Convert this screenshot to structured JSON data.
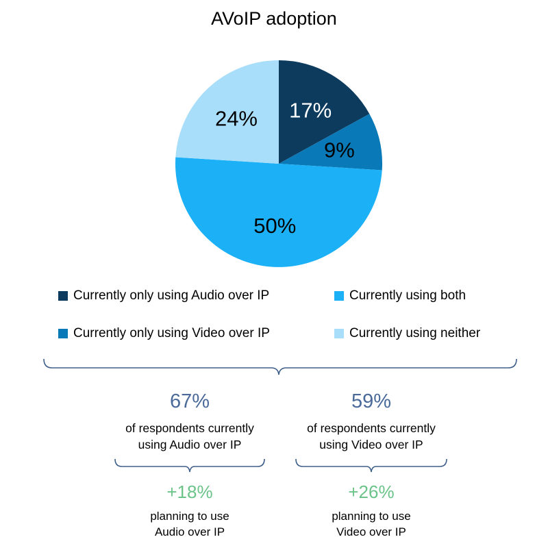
{
  "chart_data": {
    "type": "pie",
    "title": "AVoIP adoption",
    "slices": [
      {
        "label": "Currently only using Audio over IP",
        "value": 17,
        "display": "17%",
        "color": "#0c3b5e",
        "text_color": "#ffffff"
      },
      {
        "label": "Currently only using Video over IP",
        "value": 9,
        "display": "9%",
        "color": "#0a79b8",
        "text_color": "#000000"
      },
      {
        "label": "Currently using both",
        "value": 50,
        "display": "50%",
        "color": "#1cb0f6",
        "text_color": "#000000"
      },
      {
        "label": "Currently using neither",
        "value": 24,
        "display": "24%",
        "color": "#a8defa",
        "text_color": "#000000"
      }
    ],
    "legend_placement": "bottom"
  },
  "summary": {
    "audio": {
      "pct": "67%",
      "line1": "of respondents currently",
      "line2": "using Audio over IP",
      "plan_pct": "+18%",
      "plan_line1": "planning to use",
      "plan_line2": "Audio over IP"
    },
    "video": {
      "pct": "59%",
      "line1": "of respondents currently",
      "line2": "using Video over IP",
      "plan_pct": "+26%",
      "plan_line1": "planning to use",
      "plan_line2": "Video over IP"
    }
  },
  "colors": {
    "stat_blue": "#4a6a99",
    "plan_green": "#6cc38a",
    "brace": "#3e5f8a"
  }
}
